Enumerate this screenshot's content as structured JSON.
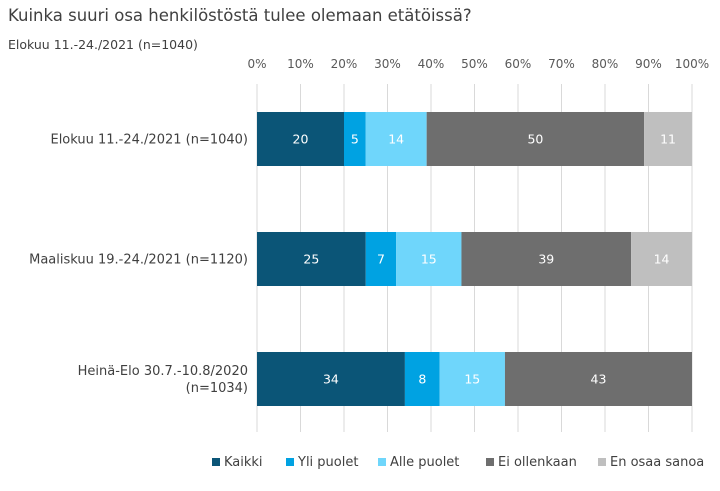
{
  "title": "Kuinka suuri osa henkilöstöstä tulee olemaan etätöissä?",
  "subtitle": "Elokuu 11.-24./2021 (n=1040)",
  "chart_data": {
    "type": "bar",
    "orientation": "horizontal",
    "stacked": true,
    "title": "Kuinka suuri osa henkilöstöstä tulee olemaan etätöissä?",
    "subtitle": "Elokuu 11.-24./2021 (n=1040)",
    "xlim": [
      0,
      100
    ],
    "x_ticks": [
      "0%",
      "10%",
      "20%",
      "30%",
      "40%",
      "50%",
      "60%",
      "70%",
      "80%",
      "90%",
      "100%"
    ],
    "x_axis_position": "top",
    "grid": true,
    "legend_position": "bottom",
    "categories": [
      [
        "Elokuu 11.-24./2021 (n=1040)"
      ],
      [
        "Maaliskuu 19.-24./2021 (n=1120)"
      ],
      [
        "Heinä-Elo 30.7.-10.8/2020",
        "(n=1034)"
      ]
    ],
    "series": [
      {
        "name": "Kaikki",
        "color": "#0b5577",
        "values": [
          20,
          25,
          34
        ]
      },
      {
        "name": "Yli puolet",
        "color": "#00a2e2",
        "values": [
          5,
          7,
          8
        ]
      },
      {
        "name": "Alle puolet",
        "color": "#6fd6fb",
        "values": [
          14,
          15,
          15
        ]
      },
      {
        "name": "Ei ollenkaan",
        "color": "#6e6e6e",
        "values": [
          50,
          39,
          43
        ]
      },
      {
        "name": "En osaa sanoa",
        "color": "#bfbfbf",
        "values": [
          11,
          14,
          null
        ]
      }
    ]
  }
}
